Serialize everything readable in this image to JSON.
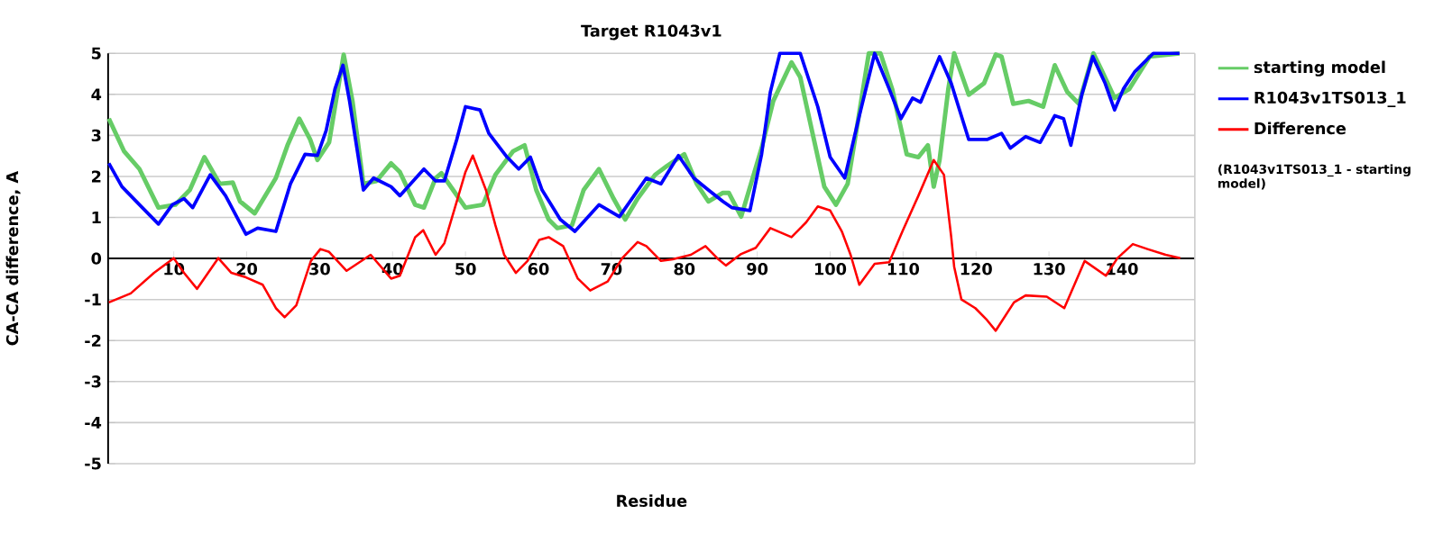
{
  "chart_data": {
    "type": "line",
    "title": "Target R1043v1",
    "xlabel": "Residue",
    "ylabel": "CA-CA difference, A",
    "xlim": [
      1,
      150
    ],
    "ylim": [
      -5,
      5
    ],
    "xticks": [
      10,
      20,
      30,
      40,
      50,
      60,
      70,
      80,
      90,
      100,
      110,
      120,
      130,
      140
    ],
    "yticks": [
      -5,
      -4,
      -3,
      -2,
      -1,
      0,
      1,
      2,
      3,
      4,
      5
    ],
    "grid": "y",
    "legend": "top right",
    "annotations": [
      "(R1043v1TS013_1 - starting model)"
    ],
    "series": [
      {
        "name": "starting model",
        "color": "#66cc66",
        "x": [
          1.1,
          3.2,
          5.3,
          7.9,
          10.2,
          12.2,
          14.2,
          16.3,
          18.1,
          19.1,
          21.1,
          24.0,
          25.6,
          27.2,
          28.7,
          29.7,
          31.3,
          33.3,
          34.5,
          36.0,
          37.8,
          39.8,
          41.0,
          43.1,
          44.3,
          45.9,
          46.7,
          48.3,
          50.0,
          52.4,
          54.1,
          56.5,
          58.1,
          59.7,
          61.4,
          62.6,
          64.6,
          66.2,
          68.3,
          70.3,
          71.9,
          73.6,
          76.0,
          77.6,
          80.0,
          81.7,
          83.3,
          85.3,
          86.1,
          87.8,
          90.6,
          92.2,
          94.7,
          95.9,
          97.5,
          99.2,
          100.8,
          102.4,
          103.6,
          105.3,
          106.9,
          108.5,
          110.5,
          112.1,
          113.4,
          114.2,
          115.0,
          116.2,
          117.0,
          119.0,
          121.1,
          122.7,
          123.5,
          125.1,
          127.2,
          129.2,
          130.8,
          132.5,
          134.1,
          136.1,
          137.3,
          139.0,
          141.0,
          143.8,
          147.9
        ],
        "values": [
          3.41,
          2.61,
          2.18,
          1.24,
          1.31,
          1.67,
          2.47,
          1.82,
          1.85,
          1.39,
          1.1,
          1.96,
          2.76,
          3.41,
          2.9,
          2.4,
          2.83,
          4.97,
          3.84,
          1.82,
          1.89,
          2.32,
          2.11,
          1.31,
          1.24,
          1.96,
          2.08,
          1.67,
          1.24,
          1.31,
          2.04,
          2.61,
          2.76,
          1.67,
          0.95,
          0.74,
          0.81,
          1.67,
          2.18,
          1.46,
          0.95,
          1.46,
          2.04,
          2.25,
          2.54,
          1.82,
          1.39,
          1.6,
          1.6,
          1.02,
          2.69,
          3.84,
          4.78,
          4.42,
          3.12,
          1.75,
          1.31,
          1.82,
          3.12,
          5.0,
          5.0,
          4.13,
          2.54,
          2.47,
          2.76,
          1.75,
          2.4,
          4.13,
          5.0,
          3.99,
          4.27,
          4.97,
          4.92,
          3.77,
          3.84,
          3.7,
          4.71,
          4.06,
          3.77,
          5.0,
          4.56,
          3.91,
          4.13,
          4.92,
          5.0
        ]
      },
      {
        "name": "R1043v1TS013_1",
        "color": "#0000ff",
        "x": [
          1.1,
          2.9,
          5.3,
          7.9,
          9.8,
          11.4,
          12.6,
          15.0,
          17.1,
          19.9,
          21.5,
          24.0,
          26.0,
          28.0,
          29.7,
          30.9,
          32.1,
          33.2,
          34.1,
          36.0,
          37.4,
          39.8,
          41.0,
          44.3,
          45.9,
          47.1,
          48.8,
          50.0,
          52.0,
          53.2,
          55.7,
          57.3,
          58.9,
          60.5,
          63.0,
          65.0,
          68.3,
          71.1,
          74.8,
          76.8,
          79.2,
          81.3,
          83.3,
          85.3,
          86.5,
          89.0,
          90.6,
          91.8,
          93.1,
          95.9,
          98.3,
          100.0,
          102.0,
          104.0,
          106.1,
          108.1,
          109.7,
          111.3,
          112.4,
          115.0,
          116.6,
          119.0,
          121.5,
          123.5,
          124.7,
          126.8,
          128.8,
          130.8,
          132.0,
          133.0,
          134.5,
          136.0,
          137.7,
          139.0,
          140.2,
          141.8,
          144.3,
          147.9
        ],
        "values": [
          2.32,
          1.75,
          1.31,
          0.84,
          1.31,
          1.46,
          1.24,
          2.04,
          1.53,
          0.59,
          0.74,
          0.66,
          1.82,
          2.54,
          2.51,
          3.12,
          4.13,
          4.71,
          3.84,
          1.67,
          1.96,
          1.75,
          1.53,
          2.18,
          1.89,
          1.89,
          2.9,
          3.7,
          3.62,
          3.05,
          2.47,
          2.18,
          2.47,
          1.67,
          0.95,
          0.66,
          1.31,
          1.02,
          1.96,
          1.82,
          2.51,
          1.96,
          1.67,
          1.39,
          1.24,
          1.17,
          2.54,
          4.06,
          5.0,
          5.0,
          3.7,
          2.47,
          1.96,
          3.48,
          5.0,
          4.13,
          3.41,
          3.91,
          3.81,
          4.92,
          4.27,
          2.9,
          2.9,
          3.05,
          2.69,
          2.97,
          2.83,
          3.48,
          3.41,
          2.76,
          3.99,
          4.92,
          4.27,
          3.62,
          4.13,
          4.56,
          5.0,
          5.0
        ]
      },
      {
        "name": "Difference",
        "color": "#ff0000",
        "x": [
          1.1,
          4.1,
          7.3,
          10.0,
          11.4,
          13.2,
          16.1,
          17.9,
          19.9,
          22.2,
          24.0,
          25.2,
          26.8,
          28.8,
          30.1,
          31.3,
          33.7,
          37.0,
          39.8,
          41.0,
          43.1,
          44.2,
          45.9,
          47.1,
          48.8,
          50.0,
          51.0,
          52.8,
          54.1,
          55.3,
          56.9,
          58.5,
          60.1,
          61.4,
          63.4,
          65.4,
          67.1,
          69.5,
          71.5,
          73.6,
          74.8,
          76.8,
          78.4,
          80.9,
          82.9,
          84.5,
          85.7,
          87.8,
          89.8,
          91.8,
          94.7,
          96.7,
          98.3,
          100.0,
          101.6,
          102.8,
          104.0,
          106.1,
          108.1,
          110.1,
          112.1,
          114.2,
          115.6,
          116.6,
          117.0,
          118.0,
          119.9,
          121.5,
          122.7,
          125.2,
          126.8,
          129.7,
          132.1,
          134.9,
          137.8,
          139.4,
          141.5,
          143.5,
          146.0,
          148.0
        ],
        "values": [
          -1.07,
          -0.85,
          -0.35,
          0.01,
          -0.35,
          -0.74,
          0.01,
          -0.35,
          -0.46,
          -0.64,
          -1.21,
          -1.43,
          -1.14,
          -0.06,
          0.23,
          0.16,
          -0.3,
          0.09,
          -0.49,
          -0.42,
          0.52,
          0.69,
          0.09,
          0.37,
          1.39,
          2.11,
          2.51,
          1.67,
          0.81,
          0.09,
          -0.35,
          -0.06,
          0.45,
          0.52,
          0.3,
          -0.49,
          -0.78,
          -0.56,
          0.01,
          0.4,
          0.3,
          -0.06,
          -0.02,
          0.09,
          0.3,
          0.01,
          -0.17,
          0.11,
          0.26,
          0.74,
          0.52,
          0.88,
          1.27,
          1.17,
          0.66,
          0.09,
          -0.64,
          -0.13,
          -0.09,
          0.74,
          1.53,
          2.4,
          2.04,
          0.52,
          -0.2,
          -1.0,
          -1.21,
          -1.5,
          -1.76,
          -1.07,
          -0.9,
          -0.93,
          -1.21,
          -0.06,
          -0.42,
          0.01,
          0.35,
          0.23,
          0.09,
          0.01
        ]
      }
    ]
  }
}
